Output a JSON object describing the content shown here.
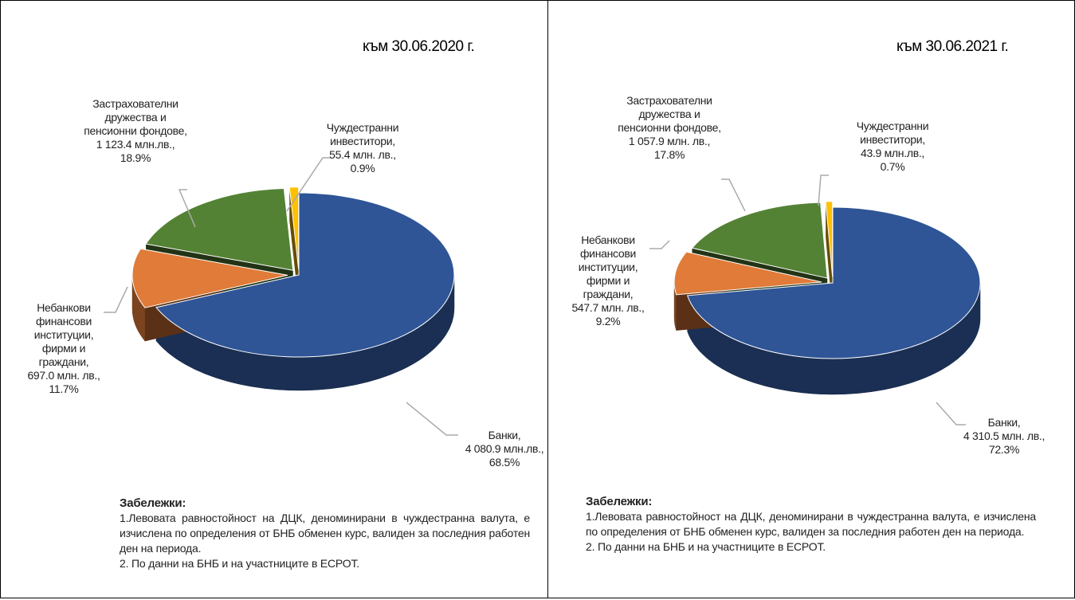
{
  "chart_data": [
    {
      "type": "pie",
      "title": "към 30.06.2020 г.",
      "categories": [
        "Банки,",
        "Небанкови финансови институции, фирми и граждани,",
        "Застрахователни дружества и пенсионни фондове,",
        "Чуждестранни инвеститори,"
      ],
      "values": [
        4080.9,
        697.0,
        1123.4,
        55.4
      ],
      "value_labels": [
        "4 080.9 млн.лв.,",
        "697.0 млн. лв.,",
        "1 123.4 млн.лв.,",
        "55.4 млн. лв.,"
      ],
      "percents": [
        68.5,
        11.7,
        18.9,
        0.9
      ],
      "percent_labels": [
        "68.5%",
        "11.7%",
        "18.9%",
        "0.9%"
      ],
      "colors": [
        "#2f5597",
        "#e07b39",
        "#548235",
        "#ffc000"
      ],
      "notes_title": "Забележки:",
      "notes": [
        "1.Левовата равностойност на ДЦК, деноминирани в чуждестранна валута, е изчислена по определения от БНБ обменен курс, валиден за последния работен ден на периода.",
        "2. По данни на БНБ и на участниците в ЕСРОТ."
      ]
    },
    {
      "type": "pie",
      "title": "към 30.06.2021 г.",
      "categories": [
        "Банки,",
        "Небанкови финансови институции, фирми и граждани,",
        "Застрахователни дружества и пенсионни фондове,",
        "Чуждестранни инвеститори,"
      ],
      "values": [
        4310.5,
        547.7,
        1057.9,
        43.9
      ],
      "value_labels": [
        "4 310.5 млн. лв.,",
        "547.7 млн. лв.,",
        "1 057.9 млн. лв.,",
        "43.9 млн.лв.,"
      ],
      "percents": [
        72.3,
        9.2,
        17.8,
        0.7
      ],
      "percent_labels": [
        "72.3%",
        "9.2%",
        "17.8%",
        "0.7%"
      ],
      "colors": [
        "#2f5597",
        "#e07b39",
        "#548235",
        "#ffc000"
      ],
      "notes_title": "Забележки:",
      "notes": [
        "1.Левовата равностойност на ДЦК, деноминирани в чуждестранна валута, е изчислена по определения от БНБ обменен курс, валиден за последния работен ден на периода.",
        "2. По данни на БНБ и на участниците в ЕСРОТ."
      ]
    }
  ]
}
